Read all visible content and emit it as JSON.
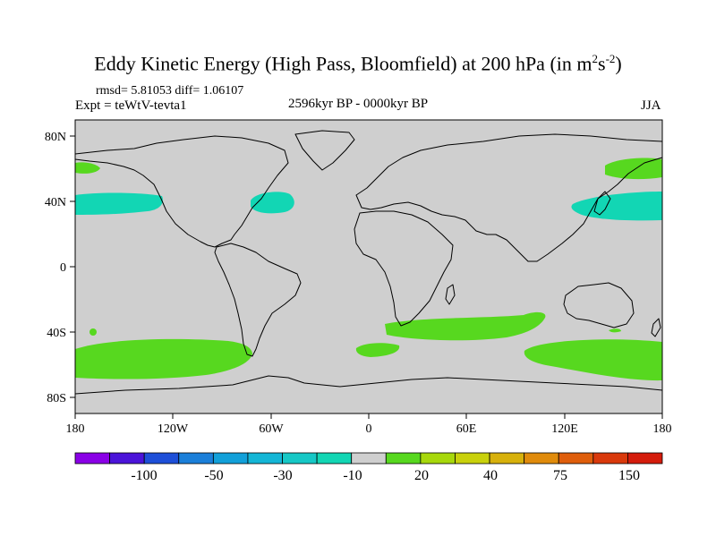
{
  "title": {
    "main": "Eddy Kinetic Energy (High Pass, Bloomfield) at 200 hPa (in m",
    "sup1": "2",
    "mid": "s",
    "sup2": "-2",
    "end": ")"
  },
  "stats": "rmsd= 5.81053 diff= 1.06107",
  "experiment": "Expt = teWtV-tevta1",
  "period": "2596kyr BP - 0000kyr BP",
  "season": "JJA",
  "map": {
    "land_color": "#cfcfcf",
    "lat_labels": [
      "80N",
      "40N",
      "0",
      "40S",
      "80S"
    ],
    "lon_labels": [
      "180",
      "120W",
      "60W",
      "0",
      "60E",
      "120E",
      "180"
    ]
  },
  "colorbar": {
    "colors": [
      "#8a00e6",
      "#4b14d9",
      "#1e4fd8",
      "#1b7fd9",
      "#12a0d9",
      "#14b6d6",
      "#16c8c6",
      "#12d6b4",
      "#cfcfcf",
      "#57d81f",
      "#a7d80c",
      "#c9d10c",
      "#d7b10c",
      "#e08b0c",
      "#df5e0c",
      "#d9390c",
      "#d41c0c"
    ],
    "labels": [
      "-100",
      "-50",
      "-30",
      "-10",
      "20",
      "40",
      "75",
      "150"
    ]
  }
}
